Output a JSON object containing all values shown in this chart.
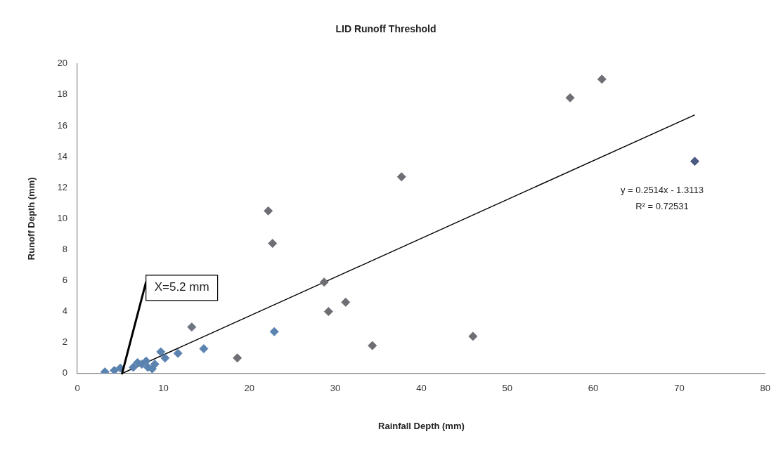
{
  "chart_data": {
    "type": "scatter",
    "title": "LID Runoff Threshold",
    "xlabel": "Rainfall Depth (mm)",
    "ylabel": "Runoff Depth (mm)",
    "xlim": [
      0,
      80
    ],
    "xticks": [
      0,
      10,
      20,
      30,
      40,
      50,
      60,
      70,
      80
    ],
    "ylim": [
      0,
      20
    ],
    "yticks": [
      0,
      2,
      4,
      6,
      8,
      10,
      12,
      14,
      16,
      18,
      20
    ],
    "grid": false,
    "legend": false,
    "marker": "diamond",
    "series": [
      {
        "x": [
          3.2,
          4.3,
          5.0,
          6.5,
          7.0,
          7.5,
          8.0,
          8.2,
          8.7,
          9.0,
          9.7,
          10.2,
          11.7,
          13.3,
          14.7,
          18.6,
          22.9,
          22.2,
          22.7,
          28.7,
          29.2,
          31.2,
          34.3,
          37.7,
          46.0,
          57.3,
          61.0,
          71.8
        ],
        "values": [
          0.1,
          0.2,
          0.35,
          0.4,
          0.7,
          0.6,
          0.8,
          0.4,
          0.3,
          0.6,
          1.4,
          1.0,
          1.3,
          3.0,
          1.6,
          1.0,
          2.7,
          10.5,
          8.4,
          5.9,
          4.0,
          4.6,
          1.8,
          12.7,
          2.4,
          17.8,
          19.0,
          13.7
        ],
        "colors": [
          "#5b83b0",
          "#5b83b0",
          "#5b83b0",
          "#5b83b0",
          "#5b83b0",
          "#5b83b0",
          "#5b83b0",
          "#5b83b0",
          "#5b83b0",
          "#5b83b0",
          "#5b83b0",
          "#5b83b0",
          "#5b83b0",
          "#6e7480",
          "#5b83b0",
          "#6e6e74",
          "#5b83b0",
          "#6e6e74",
          "#6e6e74",
          "#6e6e74",
          "#6e6e74",
          "#6e6e74",
          "#6e6e74",
          "#6e6e74",
          "#6e6e74",
          "#6e6e74",
          "#6e6e74",
          "#4a5a80"
        ]
      },
      {
        "type": "line",
        "x": [
          5.2,
          71.8
        ],
        "values": [
          0,
          16.7
        ],
        "color": "#000000",
        "marker": "none",
        "line_style": "solid"
      }
    ],
    "annotations": [
      {
        "text": "X=5.2 mm",
        "x": 5.2,
        "y": 0
      },
      "y = 0.2514x - 1.3113",
      "R² = 0.72531"
    ]
  }
}
